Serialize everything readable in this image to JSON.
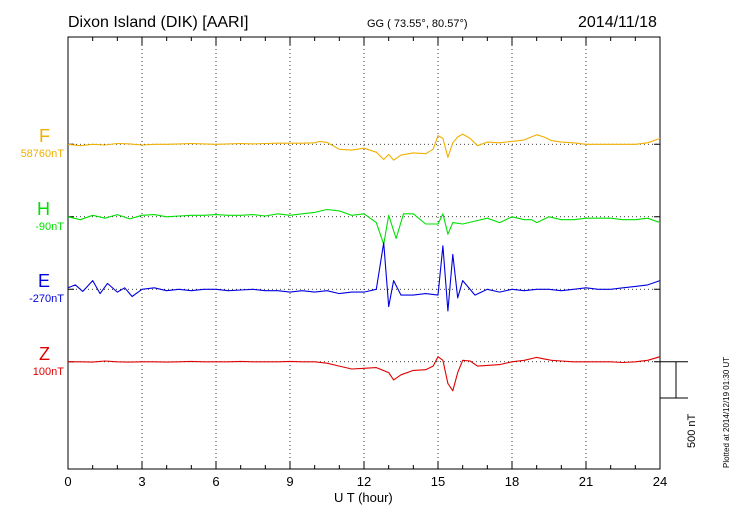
{
  "header": {
    "title": "Dixon Island (DIK)  [AARI]",
    "coords": "GG ( 73.55°,  80.57°)",
    "date": "2014/11/18"
  },
  "plotted_note": "Plotted at 2014/12/19 01:30 UT",
  "scale_bar": {
    "value": 500,
    "label": "500 nT"
  },
  "chart_data": {
    "type": "line",
    "xlabel": "U T (hour)",
    "xlim": [
      0,
      24
    ],
    "xticks": [
      "0",
      "3",
      "6",
      "9",
      "12",
      "15",
      "18",
      "21",
      "24"
    ],
    "series": [
      {
        "name": "F",
        "baseline": "58760nT",
        "color": "#f0b000",
        "offset_nT": 1500,
        "x": [
          0,
          0.5,
          1,
          1.5,
          2,
          2.5,
          3,
          3.5,
          4,
          4.5,
          5,
          5.5,
          6,
          6.5,
          7,
          7.5,
          8,
          8.5,
          9,
          9.5,
          10,
          10.2,
          10.5,
          11,
          11.5,
          12,
          12.5,
          12.8,
          13,
          13.2,
          13.5,
          14,
          14.5,
          14.8,
          15,
          15.2,
          15.4,
          15.6,
          15.8,
          16,
          16.3,
          16.6,
          17,
          17.5,
          18,
          18.5,
          19,
          19.3,
          19.6,
          20,
          20.5,
          21,
          21.5,
          22,
          22.5,
          23,
          23.5,
          24
        ],
        "y": [
          0,
          -20,
          0,
          -10,
          10,
          5,
          -10,
          0,
          0,
          5,
          10,
          5,
          0,
          5,
          10,
          5,
          10,
          15,
          15,
          15,
          20,
          40,
          25,
          -70,
          -80,
          -55,
          -110,
          -210,
          -140,
          -220,
          -150,
          -120,
          -130,
          -70,
          120,
          80,
          -180,
          20,
          100,
          140,
          80,
          -20,
          30,
          20,
          40,
          60,
          130,
          100,
          50,
          30,
          20,
          0,
          0,
          0,
          0,
          0,
          20,
          80
        ]
      },
      {
        "name": "H",
        "baseline": "-90nT",
        "color": "#00e000",
        "offset_nT": 500,
        "x": [
          0,
          0.5,
          1,
          1.5,
          2,
          2.5,
          3,
          3.5,
          4,
          4.5,
          5,
          5.5,
          6,
          6.5,
          7,
          7.5,
          8,
          8.5,
          9,
          9.5,
          10,
          10.5,
          11,
          11.5,
          12,
          12.5,
          12.8,
          13,
          13.3,
          13.6,
          14,
          14.5,
          15,
          15.2,
          15.4,
          15.6,
          16,
          16.5,
          17,
          17.5,
          18,
          18.5,
          18.8,
          19,
          19.5,
          20,
          20.5,
          21,
          21.5,
          22,
          22.5,
          23,
          23.5,
          24
        ],
        "y": [
          0,
          -40,
          20,
          -20,
          30,
          -30,
          20,
          30,
          0,
          10,
          20,
          20,
          30,
          20,
          20,
          30,
          10,
          40,
          20,
          40,
          60,
          100,
          80,
          20,
          40,
          -80,
          -380,
          20,
          -300,
          40,
          40,
          -100,
          -100,
          40,
          -240,
          -80,
          -100,
          -60,
          -20,
          -80,
          0,
          -40,
          -40,
          -80,
          0,
          -40,
          -40,
          -20,
          -20,
          -20,
          -40,
          -40,
          -20,
          -80
        ]
      },
      {
        "name": "E",
        "baseline": "-270nT",
        "color": "#0000e0",
        "offset_nT": -500,
        "x": [
          0,
          0.3,
          0.6,
          1,
          1.3,
          1.6,
          2,
          2.3,
          2.6,
          3,
          3.5,
          4,
          4.5,
          5,
          5.5,
          6,
          6.5,
          7,
          7.5,
          8,
          8.5,
          9,
          9.5,
          10,
          10.5,
          11,
          11.5,
          12,
          12.5,
          12.8,
          13,
          13.2,
          13.5,
          14,
          14.5,
          15,
          15.2,
          15.4,
          15.6,
          15.8,
          16,
          16.5,
          17,
          17.5,
          18,
          18.5,
          19,
          19.5,
          20,
          20.5,
          21,
          21.5,
          22,
          22.5,
          23,
          23.5,
          24
        ],
        "y": [
          20,
          60,
          -30,
          120,
          -60,
          80,
          -40,
          20,
          -100,
          0,
          20,
          -20,
          0,
          -20,
          0,
          0,
          -20,
          -10,
          0,
          -20,
          -20,
          -40,
          -20,
          -40,
          -20,
          -60,
          -40,
          -40,
          0,
          640,
          -240,
          120,
          -80,
          -80,
          -60,
          -80,
          600,
          -300,
          480,
          -120,
          120,
          -80,
          0,
          -40,
          0,
          -20,
          0,
          0,
          -20,
          0,
          20,
          0,
          0,
          20,
          40,
          60,
          120
        ]
      },
      {
        "name": "Z",
        "baseline": "100nT",
        "color": "#e00000",
        "offset_nT": -1500,
        "x": [
          0,
          0.5,
          1,
          1.5,
          2,
          2.5,
          3,
          3.5,
          4,
          4.5,
          5,
          5.5,
          6,
          6.5,
          7,
          7.5,
          8,
          8.5,
          9,
          9.5,
          10,
          10.5,
          11,
          11.5,
          12,
          12.5,
          13,
          13.2,
          13.5,
          14,
          14.5,
          14.8,
          15,
          15.2,
          15.4,
          15.6,
          15.8,
          16,
          16.3,
          16.6,
          17,
          17.5,
          18,
          18.5,
          19,
          19.3,
          19.6,
          20,
          20.5,
          21,
          21.5,
          22,
          22.5,
          23,
          23.5,
          24
        ],
        "y": [
          0,
          0,
          -5,
          10,
          0,
          -5,
          0,
          0,
          -5,
          0,
          5,
          0,
          0,
          0,
          5,
          0,
          0,
          0,
          5,
          0,
          0,
          -20,
          -60,
          -100,
          -90,
          -80,
          -150,
          -250,
          -180,
          -120,
          -110,
          -60,
          70,
          20,
          -300,
          -400,
          -150,
          20,
          10,
          -60,
          -50,
          -40,
          0,
          20,
          60,
          40,
          20,
          10,
          0,
          0,
          0,
          0,
          -10,
          0,
          20,
          70
        ]
      }
    ],
    "grid": "dotted",
    "legend": "left"
  }
}
